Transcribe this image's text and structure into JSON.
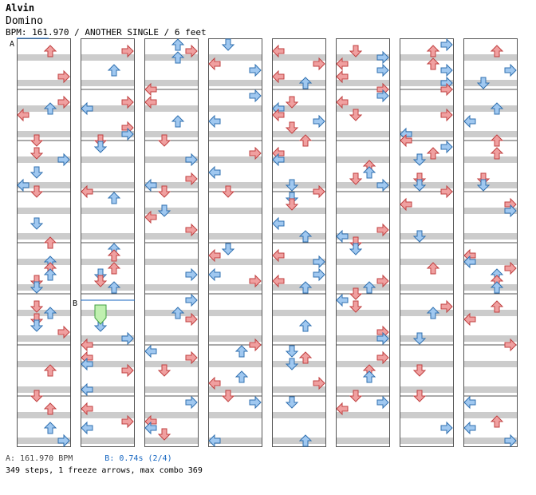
{
  "header": {
    "artist": "Alvin",
    "title": "Domino",
    "meta": "BPM: 161.970 / ANOTHER SINGLE / 6 feet"
  },
  "markers": {
    "a": "A",
    "b": "B"
  },
  "footer": {
    "bpm_line": "A: 161.970 BPM",
    "stop_line": "B: 0.74s (2/4)",
    "stats": "349 steps, 1 freeze arrows, max combo 369"
  },
  "colors": {
    "red": "#f0a0a0",
    "red_stroke": "#c04040",
    "blue": "#a0c8f0",
    "blue_stroke": "#3070b0",
    "freeze": "#c0f0b0",
    "band": "#cccccc"
  },
  "chart_data": {
    "type": "step-chart",
    "columns": 8,
    "measures_per_column": 8,
    "lanes": [
      "left",
      "down",
      "up",
      "right"
    ]
  }
}
